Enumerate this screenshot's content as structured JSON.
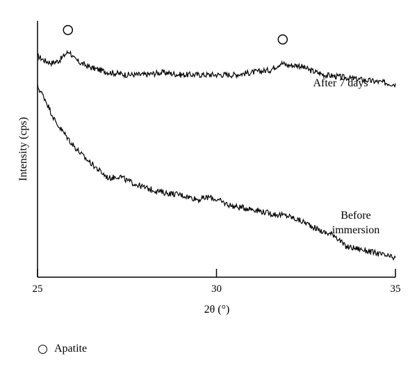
{
  "chart_data": {
    "type": "line",
    "xlabel": "2θ (°)",
    "ylabel": "Intensity (cps)",
    "xlim": [
      25,
      35
    ],
    "x_ticks": [
      25,
      30,
      35
    ],
    "y_ticks_shown": false,
    "grid": false,
    "series": [
      {
        "name": "After 7 days",
        "x": [
          25.0,
          25.2,
          25.4,
          25.6,
          25.8,
          25.9,
          26.0,
          26.2,
          26.5,
          27.0,
          27.5,
          28.0,
          28.5,
          29.0,
          29.5,
          30.0,
          30.5,
          31.0,
          31.5,
          31.8,
          32.0,
          32.3,
          32.6,
          33.0,
          33.5,
          34.0,
          34.5,
          35.0
        ],
        "values": [
          0.94,
          0.92,
          0.91,
          0.92,
          0.95,
          0.96,
          0.93,
          0.91,
          0.89,
          0.87,
          0.86,
          0.86,
          0.87,
          0.86,
          0.86,
          0.86,
          0.86,
          0.87,
          0.88,
          0.91,
          0.9,
          0.9,
          0.88,
          0.86,
          0.85,
          0.84,
          0.83,
          0.82
        ]
      },
      {
        "name": "Before immersion",
        "x": [
          25.0,
          25.2,
          25.5,
          25.8,
          26.0,
          26.3,
          26.6,
          26.9,
          27.0,
          27.3,
          27.5,
          28.0,
          28.5,
          29.0,
          29.5,
          29.8,
          30.0,
          30.3,
          30.5,
          31.0,
          31.5,
          32.0,
          32.5,
          33.0,
          33.3,
          33.6,
          34.0,
          34.5,
          35.0
        ],
        "values": [
          0.81,
          0.76,
          0.66,
          0.6,
          0.56,
          0.51,
          0.47,
          0.43,
          0.42,
          0.43,
          0.41,
          0.38,
          0.36,
          0.35,
          0.33,
          0.34,
          0.33,
          0.31,
          0.3,
          0.29,
          0.27,
          0.26,
          0.23,
          0.19,
          0.18,
          0.13,
          0.12,
          0.1,
          0.08
        ]
      }
    ],
    "annotations": [
      {
        "text": "After 7 days",
        "series": 0
      },
      {
        "text": "Before",
        "series": 1
      },
      {
        "text": "immersion",
        "series": 1
      }
    ],
    "apatite_peaks": [
      {
        "x": 25.85,
        "y": 1.05
      },
      {
        "x": 31.85,
        "y": 1.01
      }
    ]
  },
  "legend": {
    "marker_icon": "circle-outline-icon",
    "label": "Apatite"
  }
}
